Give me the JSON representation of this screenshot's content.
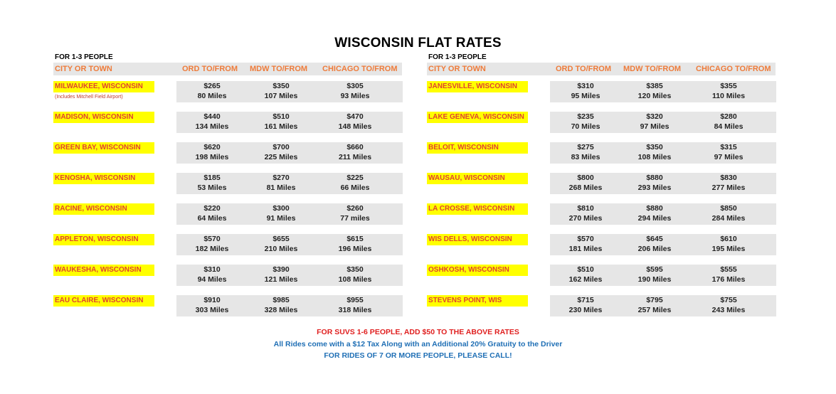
{
  "title": "WISCONSIN FLAT RATES",
  "panels": [
    {
      "people_label": "FOR 1-3 PEOPLE",
      "headers": {
        "city": "CITY OR TOWN",
        "ord": "ORD TO/FROM",
        "mdw": "MDW TO/FROM",
        "chicago": "CHICAGO TO/FROM"
      },
      "rows": [
        {
          "city": "MILWAUKEE, WISCONSIN",
          "note": "(Includes Mitchell Field Airport)",
          "ord": [
            "$265",
            "80 Miles"
          ],
          "mdw": [
            "$350",
            "107 Miles"
          ],
          "chicago": [
            "$305",
            "93 Miles"
          ]
        },
        {
          "city": "MADISON, WISCONSIN",
          "ord": [
            "$440",
            "134 Miles"
          ],
          "mdw": [
            "$510",
            "161 Miles"
          ],
          "chicago": [
            "$470",
            "148 Miles"
          ]
        },
        {
          "city": "GREEN BAY, WISCONSIN",
          "ord": [
            "$620",
            "198 Miles"
          ],
          "mdw": [
            "$700",
            "225 Miles"
          ],
          "chicago": [
            "$660",
            "211 Miles"
          ]
        },
        {
          "city": "KENOSHA, WISCONSIN",
          "ord": [
            "$185",
            "53 Miles"
          ],
          "mdw": [
            "$270",
            "81 Miles"
          ],
          "chicago": [
            "$225",
            "66 Miles"
          ]
        },
        {
          "city": "RACINE, WISCONSIN",
          "ord": [
            "$220",
            "64 Miles"
          ],
          "mdw": [
            "$300",
            "91 Miles"
          ],
          "chicago": [
            "$260",
            "77 miles"
          ]
        },
        {
          "city": "APPLETON, WISCONSIN",
          "ord": [
            "$570",
            "182 Miles"
          ],
          "mdw": [
            "$655",
            "210 Miles"
          ],
          "chicago": [
            "$615",
            "196 Miles"
          ]
        },
        {
          "city": "WAUKESHA, WISCONSIN",
          "ord": [
            "$310",
            "94 Miles"
          ],
          "mdw": [
            "$390",
            "121 Miles"
          ],
          "chicago": [
            "$350",
            "108 Miles"
          ]
        },
        {
          "city": "EAU CLAIRE, WISCONSIN",
          "ord": [
            "$910",
            "303 Miles"
          ],
          "mdw": [
            "$985",
            "328 Miles"
          ],
          "chicago": [
            "$955",
            "318 Miles"
          ]
        }
      ]
    },
    {
      "people_label": "FOR 1-3 PEOPLE",
      "headers": {
        "city": "CITY OR TOWN",
        "ord": "ORD TO/FROM",
        "mdw": "MDW TO/FROM",
        "chicago": "CHICAGO TO/FROM"
      },
      "rows": [
        {
          "city": "JANESVILLE, WISCONSIN",
          "ord": [
            "$310",
            "95 Miles"
          ],
          "mdw": [
            "$385",
            "120 Miles"
          ],
          "chicago": [
            "$355",
            "110 Miles"
          ]
        },
        {
          "city": "LAKE GENEVA, WISCONSIN",
          "ord": [
            "$235",
            "70 Miles"
          ],
          "mdw": [
            "$320",
            "97 Miles"
          ],
          "chicago": [
            "$280",
            "84 Miles"
          ]
        },
        {
          "city": "BELOIT, WISCONSIN",
          "ord": [
            "$275",
            "83 Miles"
          ],
          "mdw": [
            "$350",
            "108 Miles"
          ],
          "chicago": [
            "$315",
            "97 Miles"
          ]
        },
        {
          "city": "WAUSAU, WISCONSIN",
          "ord": [
            "$800",
            "268 Miles"
          ],
          "mdw": [
            "$880",
            "293 Miles"
          ],
          "chicago": [
            "$830",
            "277 Miles"
          ]
        },
        {
          "city": "LA CROSSE, WISCONSIN",
          "ord": [
            "$810",
            "270 Miles"
          ],
          "mdw": [
            "$880",
            "294 Miles"
          ],
          "chicago": [
            "$850",
            "284 Miles"
          ]
        },
        {
          "city": "WIS DELLS, WISCONSIN",
          "ord": [
            "$570",
            "181 Miles"
          ],
          "mdw": [
            "$645",
            "206 Miles"
          ],
          "chicago": [
            "$610",
            "195 Miles"
          ]
        },
        {
          "city": "OSHKOSH, WISCONSIN",
          "ord": [
            "$510",
            "162 Miles"
          ],
          "mdw": [
            "$595",
            "190 Miles"
          ],
          "chicago": [
            "$555",
            "176 Miles"
          ]
        },
        {
          "city": "STEVENS POINT, WIS",
          "ord": [
            "$715",
            "230 Miles"
          ],
          "mdw": [
            "$795",
            "257 Miles"
          ],
          "chicago": [
            "$755",
            "243 Miles"
          ]
        }
      ]
    }
  ],
  "footer": {
    "suv": "FOR SUVS 1-6 PEOPLE, ADD $50 TO THE ABOVE RATES",
    "tax": "All Rides come with a $12 Tax Along with an Additional 20% Gratuity to the Driver",
    "call": "FOR RIDES OF 7 OR MORE PEOPLE, PLEASE CALL!"
  },
  "colors": {
    "header_text": "#ee7b3a",
    "city_text": "#e0442e",
    "city_bg": "#ffff00",
    "cell_bg": "#e6e6e6",
    "suv_text": "#e02020",
    "info_text": "#1f6fb5"
  }
}
